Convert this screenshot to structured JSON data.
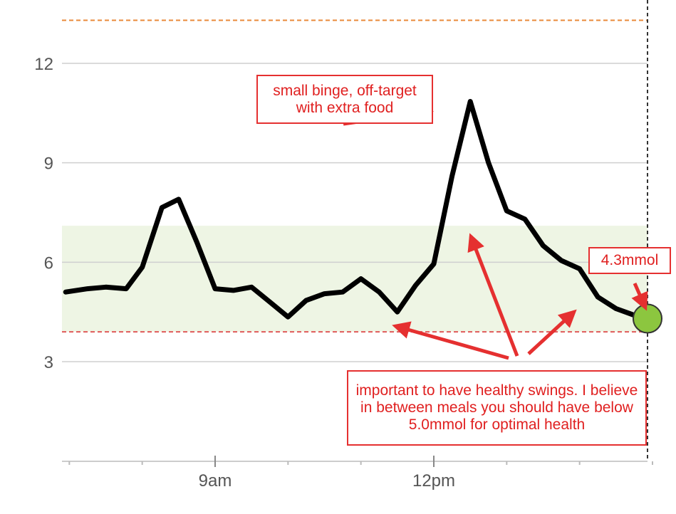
{
  "chart_data": {
    "type": "line",
    "title": "",
    "xlabel": "",
    "ylabel": "",
    "yticks": [
      3,
      6,
      9,
      12
    ],
    "ylim": [
      0,
      13.5
    ],
    "xticks": [
      {
        "label": "9am",
        "hour": 9
      },
      {
        "label": "12pm",
        "hour": 12
      }
    ],
    "xlim_hours": [
      6.95,
      15.0
    ],
    "target_range": {
      "low": 3.9,
      "high": 7.1
    },
    "high_threshold": 13.3,
    "low_threshold": 3.9,
    "series": [
      {
        "name": "",
        "x_hours": [
          6.95,
          7.25,
          7.5,
          7.78,
          8.0,
          8.27,
          8.5,
          8.75,
          9.0,
          9.25,
          9.5,
          9.75,
          10.0,
          10.25,
          10.5,
          10.75,
          11.0,
          11.25,
          11.5,
          11.75,
          12.0,
          12.25,
          12.5,
          12.75,
          13.0,
          13.25,
          13.5,
          13.75,
          14.0,
          14.25,
          14.5,
          14.75,
          15.0
        ],
        "values": [
          5.1,
          5.2,
          5.25,
          5.2,
          5.85,
          7.65,
          7.9,
          6.6,
          5.2,
          5.15,
          5.25,
          4.8,
          4.35,
          4.85,
          5.05,
          5.1,
          5.5,
          5.1,
          4.5,
          5.3,
          5.95,
          8.6,
          10.85,
          9.0,
          7.55,
          7.3,
          6.5,
          6.05,
          5.8,
          4.95,
          4.6,
          4.4,
          4.35
        ]
      }
    ],
    "current_value": 4.3,
    "colors": {
      "line": "#000000",
      "target_band": "#eef5e4",
      "high_line": "#e98a3a",
      "low_line": "#e05a5a",
      "current_marker": "#8cc63f",
      "annotation": "#e53030"
    }
  },
  "annotations": {
    "binge": "small binge, off-target with extra food",
    "current": "4.3mmol",
    "swings": "important to have healthy swings. I believe in between meals you should have below 5.0mmol for optimal health"
  }
}
